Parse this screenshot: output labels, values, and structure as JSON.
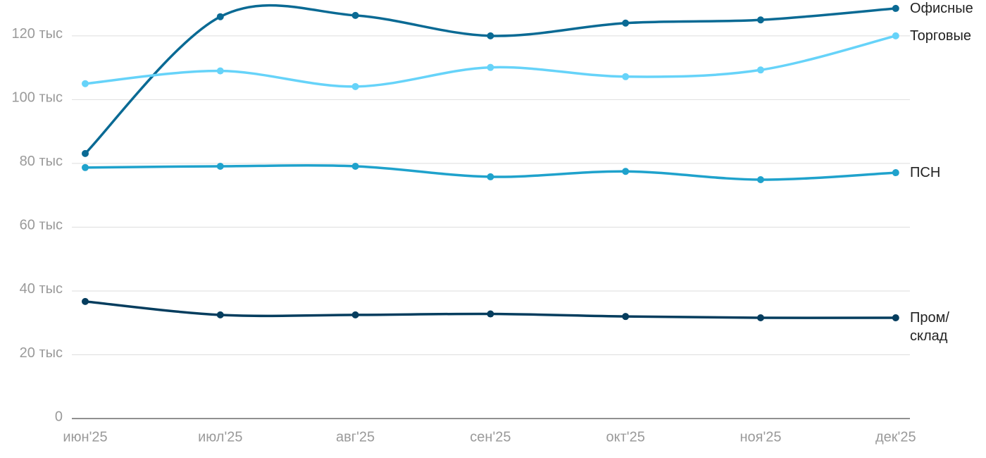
{
  "chart_data": {
    "type": "line",
    "categories": [
      "июн'25",
      "июл'25",
      "авг'25",
      "сен'25",
      "окт'25",
      "ноя'25",
      "дек'25"
    ],
    "series": [
      {
        "name": "Офисные",
        "color": "#0a6a94",
        "values": [
          83100,
          126000,
          126400,
          120000,
          124000,
          125000,
          128600
        ]
      },
      {
        "name": "Торговые",
        "color": "#66d3f9",
        "values": [
          105000,
          109000,
          104100,
          110100,
          107200,
          109300,
          120000
        ]
      },
      {
        "name": "ПСН",
        "color": "#1fa2cc",
        "values": [
          78700,
          79100,
          79100,
          75800,
          77500,
          74900,
          77100
        ]
      },
      {
        "name": "Пром/ склад",
        "color": "#053d5e",
        "values": [
          36700,
          32500,
          32500,
          32800,
          32000,
          31600,
          31600
        ]
      }
    ],
    "ylim": [
      0,
      130000
    ],
    "yticks": [
      0,
      {
        "value": 20000,
        "label": "20 тыс"
      },
      {
        "value": 40000,
        "label": "40 тыс"
      },
      {
        "value": 60000,
        "label": "60 тыс"
      },
      {
        "value": 80000,
        "label": "80 тыс"
      },
      {
        "value": 100000,
        "label": "100 тыс"
      },
      {
        "value": 120000,
        "label": "120 тыс"
      }
    ],
    "grid": true
  }
}
